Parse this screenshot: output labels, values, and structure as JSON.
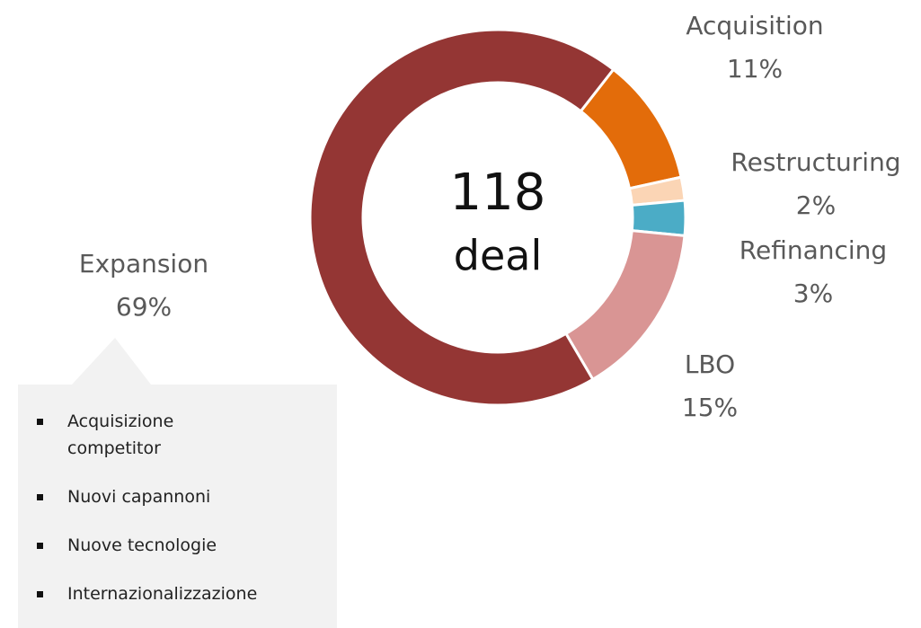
{
  "chart_data": {
    "type": "donut",
    "categories": [
      "Acquisition",
      "Restructuring",
      "Refinancing",
      "LBO",
      "Expansion"
    ],
    "values": [
      11,
      2,
      3,
      15,
      69
    ],
    "value_labels": [
      "11%",
      "2%",
      "3%",
      "15%",
      "69%"
    ],
    "colors": [
      "#e36c0a",
      "#fbd5b5",
      "#4bacc6",
      "#d99594",
      "#943634"
    ],
    "center_value": "118",
    "center_label": "deal"
  },
  "callout": {
    "items": [
      "Acquisizione competitor",
      "Nuovi capannoni",
      "Nuove tecnologie",
      "Internazionalizzazione"
    ]
  }
}
